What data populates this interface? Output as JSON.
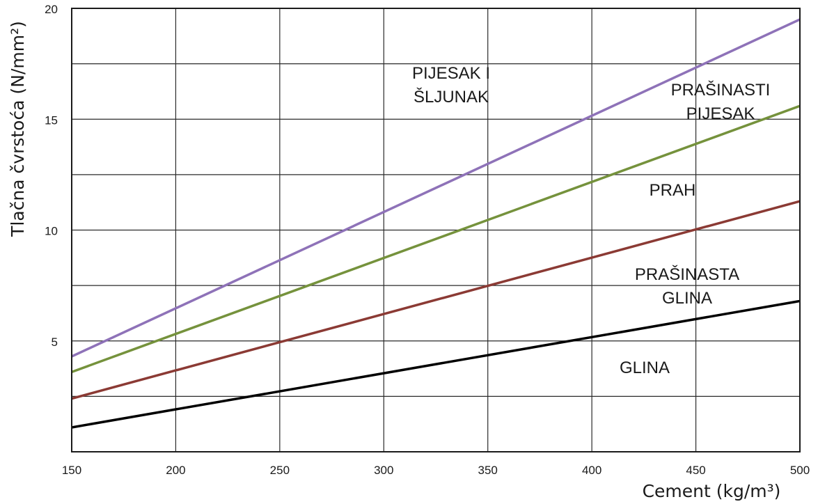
{
  "chart_data": {
    "type": "line",
    "xlabel": "Cement  (kg/m³)",
    "ylabel": "Tlačna čvrstoća  (N/mm²)",
    "xlim": [
      150,
      500
    ],
    "ylim": [
      0,
      20
    ],
    "x_ticks": [
      150,
      200,
      250,
      300,
      350,
      400,
      450,
      500
    ],
    "y_ticks": [
      5,
      10,
      15,
      20
    ],
    "x_tick_labels": [
      "150",
      "200",
      "250",
      "300",
      "350",
      "400",
      "450",
      "500"
    ],
    "y_tick_labels": [
      "5",
      "10",
      "15",
      "20"
    ],
    "grid": true,
    "legend": "none",
    "series": [
      {
        "name": "PIJESAK I ŠLJUNAK",
        "label_lines": [
          "PIJESAK I",
          "ŠLJUNAK"
        ],
        "color": "#8e72b8",
        "x": [
          150,
          500
        ],
        "y": [
          4.3,
          19.5
        ]
      },
      {
        "name": "PRAŠINASTI PIJESAK",
        "label_lines": [
          "PRAŠINASTI",
          "PIJESAK"
        ],
        "color": "#75923c",
        "x": [
          150,
          500
        ],
        "y": [
          3.6,
          15.6
        ]
      },
      {
        "name": "PRAH",
        "label_lines": [
          "PRAH"
        ],
        "color": "#8b3a34",
        "x": [
          150,
          500
        ],
        "y": [
          2.4,
          11.3
        ]
      },
      {
        "name": "PRAŠINASTA GLINA",
        "label_lines": [
          "PRAŠINASTA",
          "GLINA"
        ],
        "color": "#000000",
        "x": [
          150,
          500
        ],
        "y": [
          1.1,
          6.8
        ]
      }
    ],
    "extra_labels": [
      {
        "lines": [
          "GLINA"
        ]
      }
    ]
  }
}
